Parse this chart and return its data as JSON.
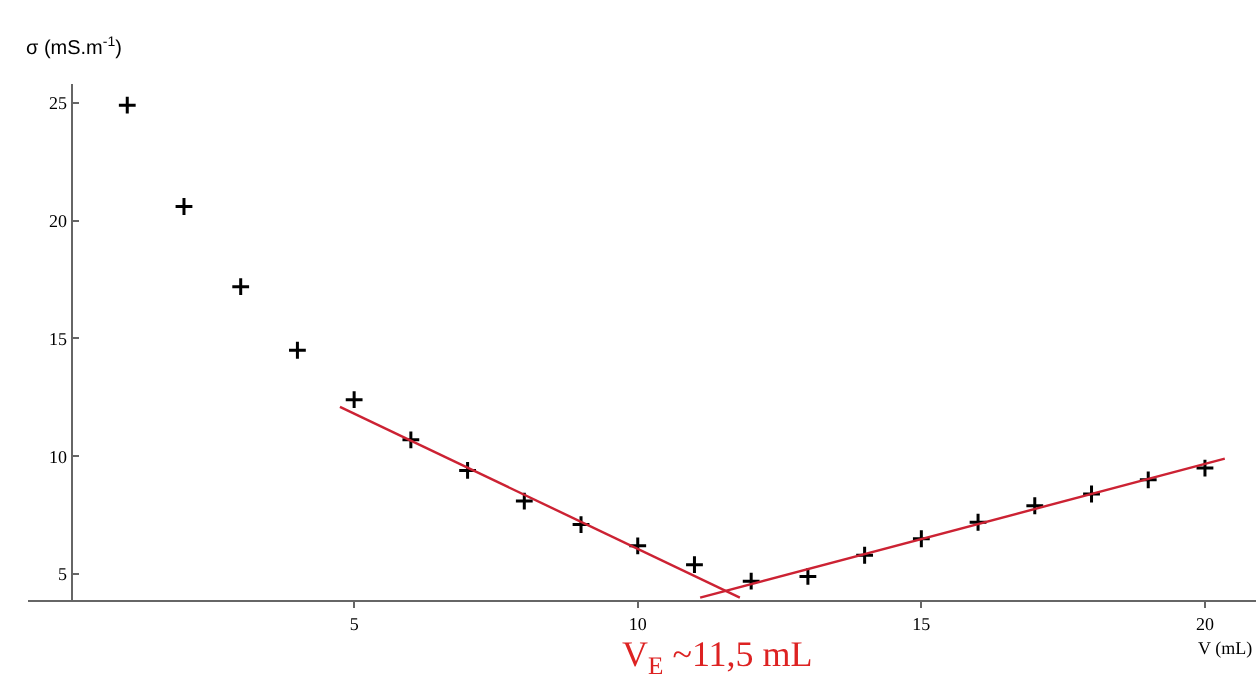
{
  "chart_data": {
    "type": "scatter",
    "xlabel": "V (mL)",
    "ylabel": "σ (mS.m$^{-1}$)",
    "xlim": [
      -0.75,
      20.9
    ],
    "ylim": [
      3.9,
      25.8
    ],
    "xticks": [
      5,
      10,
      15,
      20
    ],
    "yticks": [
      5,
      10,
      15,
      20,
      25
    ],
    "grid": false,
    "marker": "cross",
    "series": [
      {
        "color": "#000000",
        "x": [
          1,
          2,
          3,
          4,
          5,
          6,
          7,
          8,
          9,
          10,
          11,
          12,
          13,
          14,
          15,
          16,
          17,
          18,
          19,
          20
        ],
        "values": [
          24.9,
          20.6,
          17.2,
          14.5,
          12.4,
          10.7,
          9.4,
          8.1,
          7.1,
          6.2,
          5.4,
          4.7,
          4.9,
          5.8,
          6.5,
          7.2,
          7.9,
          8.4,
          9.0,
          9.5
        ]
      },
      {
        "type": "line",
        "color": "#cc2233",
        "marker": "none",
        "line_style": "solid",
        "x": [
          4.75,
          11.8
        ],
        "values": [
          12.1,
          4.0
        ]
      },
      {
        "type": "line",
        "color": "#cc2233",
        "marker": "none",
        "line_style": "solid",
        "x": [
          11.1,
          20.35
        ],
        "values": [
          4.0,
          9.9
        ]
      }
    ],
    "annotations": [
      "V$_{E}$ ~11,5 mL"
    ]
  }
}
